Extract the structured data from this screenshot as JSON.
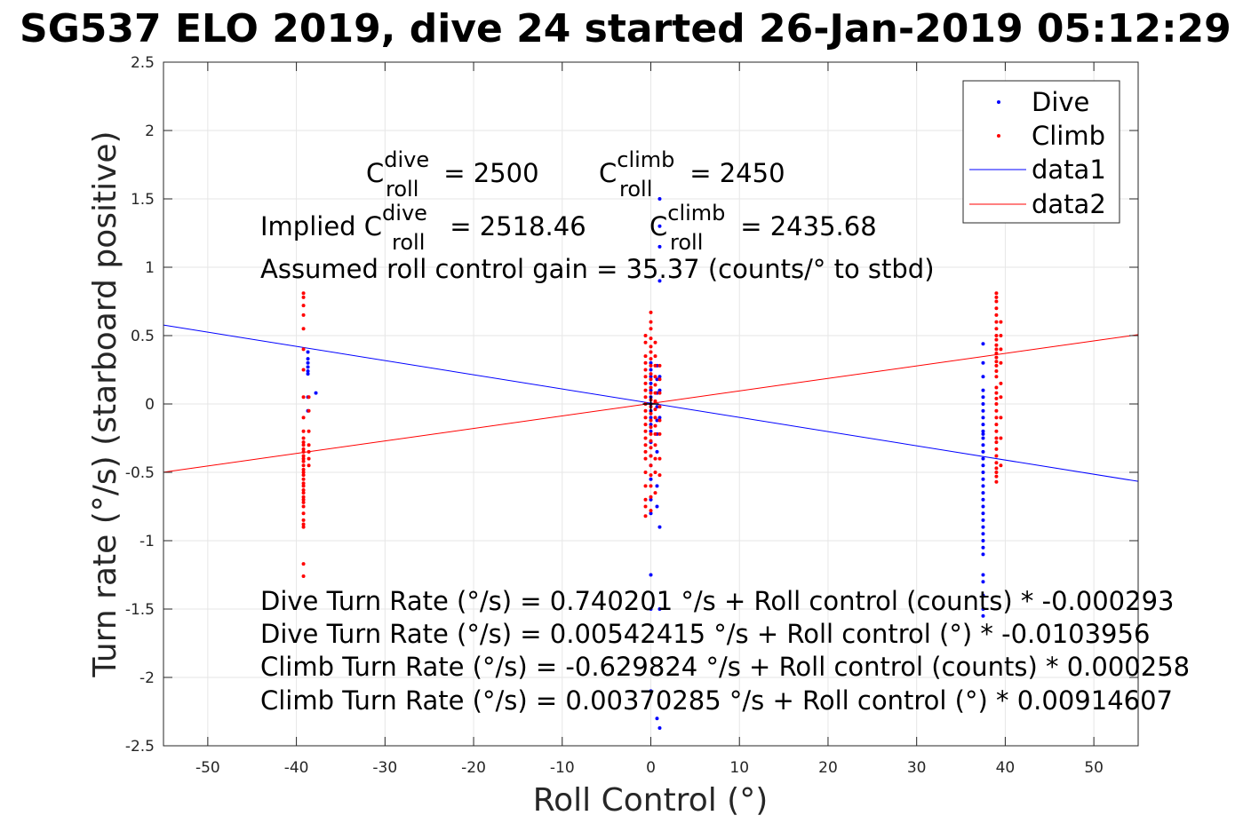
{
  "title": "SG537 ELO 2019, dive 24 started 26-Jan-2019 05:12:29",
  "colors": {
    "dive": "#0000ff",
    "climb": "#ff0000",
    "grid": "#e6e6e6",
    "axis": "#262626"
  },
  "annotations": {
    "c_dive_prefix": "C",
    "c_dive_sup": "dive",
    "c_dive_sub": "roll",
    "c_dive_value": " = 2500",
    "c_climb_prefix": "C",
    "c_climb_sup": "climb",
    "c_climb_sub": "roll",
    "c_climb_value": " = 2450",
    "implied_prefix": "Implied C",
    "implied_dive_sup": "dive",
    "implied_dive_sub": "roll",
    "implied_dive_value": " = 2518.46",
    "implied_climb_prefix": "C",
    "implied_climb_sup": "climb",
    "implied_climb_sub": "roll",
    "implied_climb_value": " = 2435.68",
    "gain_line": "Assumed roll control gain = 35.37 (counts/° to stbd)",
    "eq1": "Dive Turn Rate (°/s) = 0.740201 °/s + Roll control (counts) * -0.000293",
    "eq2": "Dive Turn Rate (°/s) = 0.00542415 °/s + Roll control (°) * -0.0103956",
    "eq3": "Climb Turn Rate (°/s) = -0.629824 °/s + Roll control (counts) * 0.000258",
    "eq4": "Climb Turn Rate (°/s) = 0.00370285 °/s + Roll control (°) * 0.00914607"
  },
  "chart_data": {
    "type": "scatter",
    "xlabel": "Roll Control (°)",
    "ylabel": "Turn rate (°/s) (starboard positive)",
    "xlim": [
      -55,
      55
    ],
    "ylim": [
      -2.5,
      2.5
    ],
    "xticks": [
      -50,
      -40,
      -30,
      -20,
      -10,
      0,
      10,
      20,
      30,
      40,
      50
    ],
    "yticks": [
      -2.5,
      -2,
      -1.5,
      -1,
      -0.5,
      0,
      0.5,
      1,
      1.5,
      2,
      2.5
    ],
    "grid": true,
    "legend_position": "top-right",
    "legend": [
      "Dive",
      "Climb",
      "data1",
      "data2"
    ],
    "series": [
      {
        "name": "Dive",
        "kind": "points",
        "color": "#0000ff",
        "clusters": [
          {
            "x": -38.7,
            "y_values": [
              0.38,
              0.33,
              0.3,
              0.27,
              0.24,
              0.22,
              0.05,
              -0.05
            ]
          },
          {
            "x": -37.8,
            "y_values": [
              0.08
            ]
          },
          {
            "x": 0.0,
            "y_values": [
              0.3,
              0.25,
              0.2,
              0.15,
              0.1,
              0.05,
              0.0,
              -0.05,
              -0.1,
              -0.15,
              -0.2,
              -0.28,
              -0.38,
              -0.45,
              -0.55,
              -0.7,
              -0.8,
              -1.25,
              -1.5,
              -2.1
            ]
          },
          {
            "x": 0.7,
            "y_values": [
              0.28,
              0.18,
              0.08,
              -0.02,
              -0.12,
              -0.22,
              -0.35,
              -0.6,
              -0.75,
              -2.3
            ]
          },
          {
            "x": 1.0,
            "y_values": [
              1.5,
              1.3,
              1.15,
              0.9,
              0.2,
              0.1,
              -0.1,
              -0.9,
              -1.5,
              -2.37
            ]
          },
          {
            "x": 37.5,
            "y_values": [
              0.44,
              0.3,
              0.2,
              0.1,
              0.05,
              0.0,
              -0.05,
              -0.1,
              -0.15,
              -0.2,
              -0.22,
              -0.25,
              -0.3,
              -0.35,
              -0.4,
              -0.45,
              -0.5,
              -0.55,
              -0.6,
              -0.65,
              -0.7,
              -0.75,
              -0.8,
              -0.85,
              -0.9,
              -0.95,
              -1.0,
              -1.05,
              -1.1,
              -1.25,
              -1.3,
              -1.4,
              -1.5,
              -1.55
            ]
          }
        ]
      },
      {
        "name": "Climb",
        "kind": "points",
        "color": "#ff0000",
        "clusters": [
          {
            "x": -39.2,
            "y_values": [
              0.81,
              0.78,
              0.72,
              0.65,
              0.55,
              0.4,
              0.25,
              0.05,
              -0.1,
              -0.2,
              -0.25,
              -0.28,
              -0.3,
              -0.33,
              -0.35,
              -0.38,
              -0.4,
              -0.42,
              -0.45,
              -0.48,
              -0.5,
              -0.52,
              -0.55,
              -0.58,
              -0.6,
              -0.63,
              -0.65,
              -0.68,
              -0.7,
              -0.72,
              -0.75,
              -0.8,
              -0.85,
              -0.88,
              -0.9,
              -1.17,
              -1.26
            ]
          },
          {
            "x": -38.6,
            "y_values": [
              0.05,
              -0.05,
              -0.2,
              -0.3,
              -0.35,
              -0.4,
              -0.45
            ]
          },
          {
            "x": -0.6,
            "y_values": [
              0.5,
              0.45,
              0.35,
              0.3,
              0.25,
              0.2,
              0.15,
              0.1,
              0.05,
              0.0,
              -0.05,
              -0.1,
              -0.15,
              -0.2,
              -0.25,
              -0.3,
              -0.35,
              -0.4,
              -0.5,
              -0.6,
              -0.7,
              -0.75,
              -0.82
            ]
          },
          {
            "x": 0.0,
            "y_values": [
              0.67,
              0.6,
              0.55,
              0.48,
              0.42,
              0.38,
              0.33,
              0.28,
              0.22,
              0.18,
              0.12,
              0.08,
              0.03,
              -0.02,
              -0.07,
              -0.12,
              -0.17,
              -0.22,
              -0.27,
              -0.32,
              -0.38,
              -0.45,
              -0.52,
              -0.6,
              -0.68,
              -0.78
            ]
          },
          {
            "x": 0.5,
            "y_values": [
              0.45,
              0.35,
              0.28,
              0.2,
              0.14,
              0.08,
              0.02,
              -0.04,
              -0.1,
              -0.16,
              -0.22,
              -0.3,
              -0.4,
              -0.5,
              -0.65
            ]
          },
          {
            "x": 1.0,
            "y_values": [
              0.28,
              0.18,
              0.08,
              -0.02,
              -0.12,
              -0.22,
              -0.4,
              -0.52
            ]
          },
          {
            "x": 39.0,
            "y_values": [
              0.81,
              0.78,
              0.75,
              0.7,
              0.65,
              0.6,
              0.55,
              0.5,
              0.47,
              0.43,
              0.4,
              0.37,
              0.34,
              0.31,
              0.28,
              0.24,
              0.2,
              0.12,
              0.08,
              0.04,
              0.0,
              -0.05,
              -0.1,
              -0.15,
              -0.2,
              -0.25,
              -0.28,
              -0.33,
              -0.38,
              -0.43,
              -0.47,
              -0.5,
              -0.53,
              -0.57
            ]
          },
          {
            "x": 39.5,
            "y_values": [
              0.6,
              0.5,
              0.4,
              0.3,
              0.15,
              0.05,
              -0.1,
              -0.25,
              -0.45
            ]
          }
        ]
      },
      {
        "name": "data1",
        "kind": "line",
        "color": "#0000ff",
        "x": [
          -55,
          55
        ],
        "y": [
          0.577,
          -0.566
        ]
      },
      {
        "name": "data2",
        "kind": "line",
        "color": "#ff0000",
        "x": [
          -55,
          55
        ],
        "y": [
          -0.499,
          0.507
        ]
      }
    ]
  }
}
